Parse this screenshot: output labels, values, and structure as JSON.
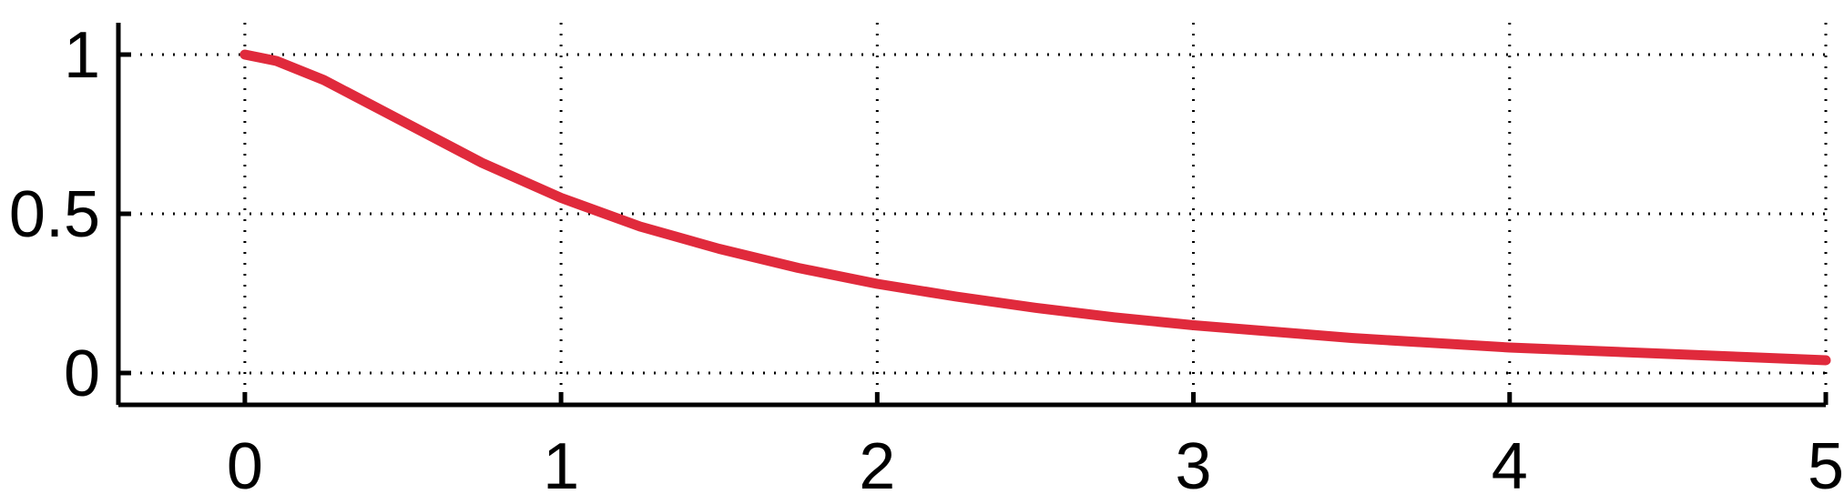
{
  "chart_data": {
    "type": "line",
    "title": "",
    "xlabel": "",
    "ylabel": "",
    "xlim": [
      -0.4,
      5
    ],
    "ylim": [
      -0.1,
      1.1
    ],
    "xticks": [
      0,
      1,
      2,
      3,
      4,
      5
    ],
    "yticks": [
      0,
      0.5,
      1
    ],
    "xtick_labels": [
      "0",
      "1",
      "2",
      "3",
      "4",
      "5"
    ],
    "ytick_labels": [
      "0",
      "0.5",
      "1"
    ],
    "grid": "dotted",
    "legend": "none",
    "series": [
      {
        "color": "#e02a3c",
        "x": [
          0,
          0.1,
          0.25,
          0.5,
          0.75,
          1,
          1.25,
          1.5,
          1.75,
          2,
          2.25,
          2.5,
          2.75,
          3,
          3.25,
          3.5,
          3.75,
          4,
          4.25,
          4.5,
          4.75,
          5
        ],
        "y": [
          1.0,
          0.98,
          0.92,
          0.79,
          0.66,
          0.55,
          0.46,
          0.39,
          0.33,
          0.28,
          0.24,
          0.205,
          0.175,
          0.15,
          0.13,
          0.11,
          0.095,
          0.08,
          0.07,
          0.06,
          0.05,
          0.04
        ]
      }
    ]
  }
}
